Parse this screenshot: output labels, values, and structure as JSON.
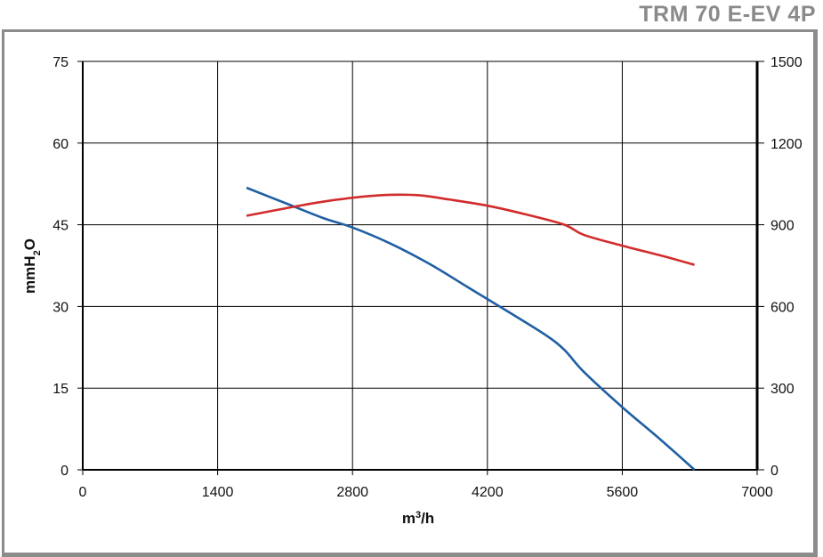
{
  "header": {
    "model": "TRM 70 E-EV 4P"
  },
  "chart_data": {
    "type": "line",
    "xlabel": "m3/h",
    "ylabel": "mmH2O",
    "x_ticks": [
      "0",
      "1400",
      "2800",
      "4200",
      "5600",
      "7000"
    ],
    "y_left_ticks": [
      "0",
      "15",
      "30",
      "45",
      "60",
      "75"
    ],
    "y_right_ticks": [
      "0",
      "300",
      "600",
      "900",
      "1200",
      "1500"
    ],
    "xlim": [
      0,
      7000
    ],
    "ylim_left": [
      0,
      75
    ],
    "ylim_right": [
      0,
      1500
    ],
    "grid": true,
    "series": [
      {
        "axis": "left",
        "color": "#1f5fa3",
        "x": [
          1700,
          2100,
          2500,
          2800,
          3200,
          3600,
          4000,
          4400,
          4800,
          5000,
          5200,
          5600,
          6000,
          6350
        ],
        "y": [
          51.8,
          49.0,
          46.2,
          44.5,
          41.5,
          37.8,
          33.5,
          29.2,
          24.8,
          22.0,
          18.0,
          11.5,
          5.5,
          0
        ]
      },
      {
        "axis": "right",
        "color": "#d22b2b",
        "x": [
          1700,
          2100,
          2500,
          2900,
          3200,
          3500,
          3800,
          4200,
          4600,
          5000,
          5200,
          5600,
          6000,
          6350
        ],
        "y": [
          933,
          960,
          985,
          1003,
          1010,
          1008,
          993,
          970,
          938,
          900,
          863,
          823,
          787,
          753
        ]
      }
    ]
  }
}
